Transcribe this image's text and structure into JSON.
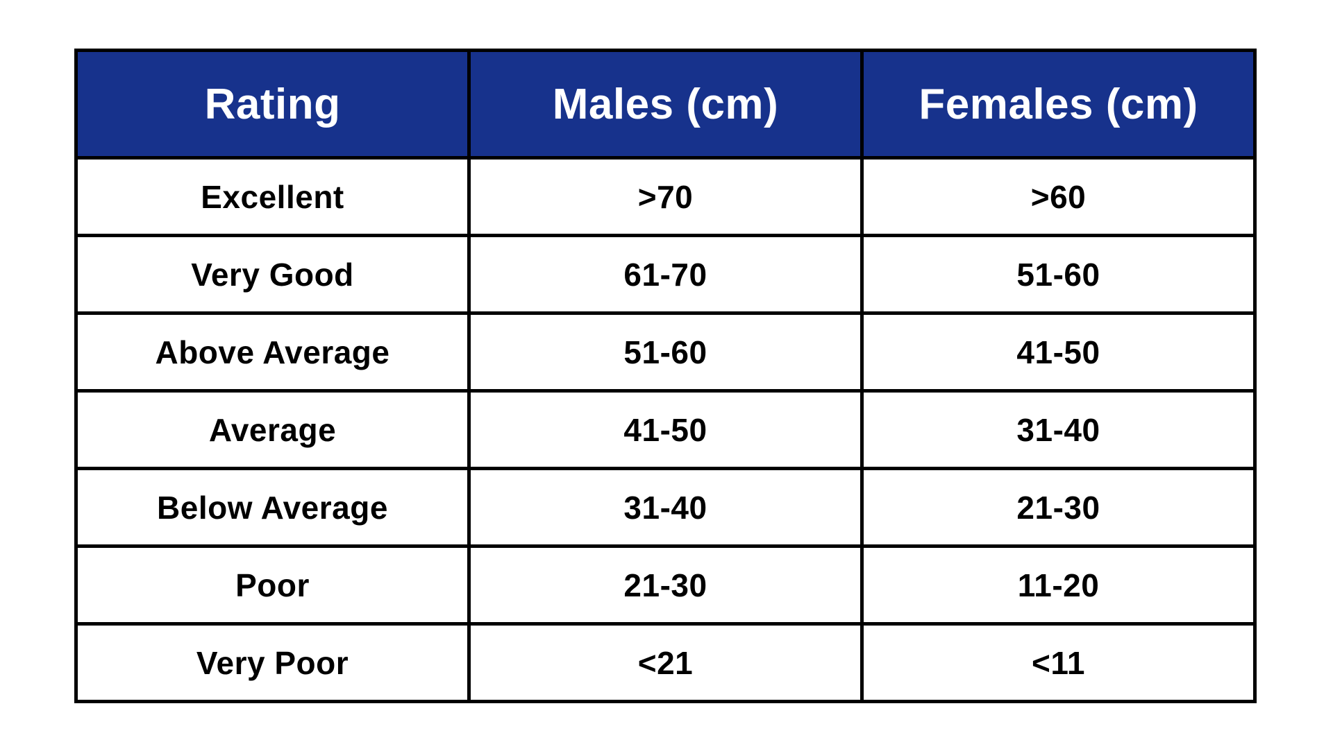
{
  "colors": {
    "header_background": "#17328C",
    "header_text": "#FFFFFF",
    "cell_text": "#000000",
    "border": "#000000",
    "page_background": "#FFFFFF"
  },
  "chart_data": {
    "type": "table",
    "title": "",
    "columns": [
      "Rating",
      "Males (cm)",
      "Females (cm)"
    ],
    "rows": [
      [
        "Excellent",
        ">70",
        ">60"
      ],
      [
        "Very Good",
        "61-70",
        "51-60"
      ],
      [
        "Above Average",
        "51-60",
        "41-50"
      ],
      [
        "Average",
        "41-50",
        "31-40"
      ],
      [
        "Below Average",
        "31-40",
        "21-30"
      ],
      [
        "Poor",
        "21-30",
        "11-20"
      ],
      [
        "Very Poor",
        "<21",
        "<11"
      ]
    ],
    "layout": {
      "columns_equal_width": true,
      "grid": "all-borders",
      "header_style": "dark-blue-filled"
    }
  }
}
